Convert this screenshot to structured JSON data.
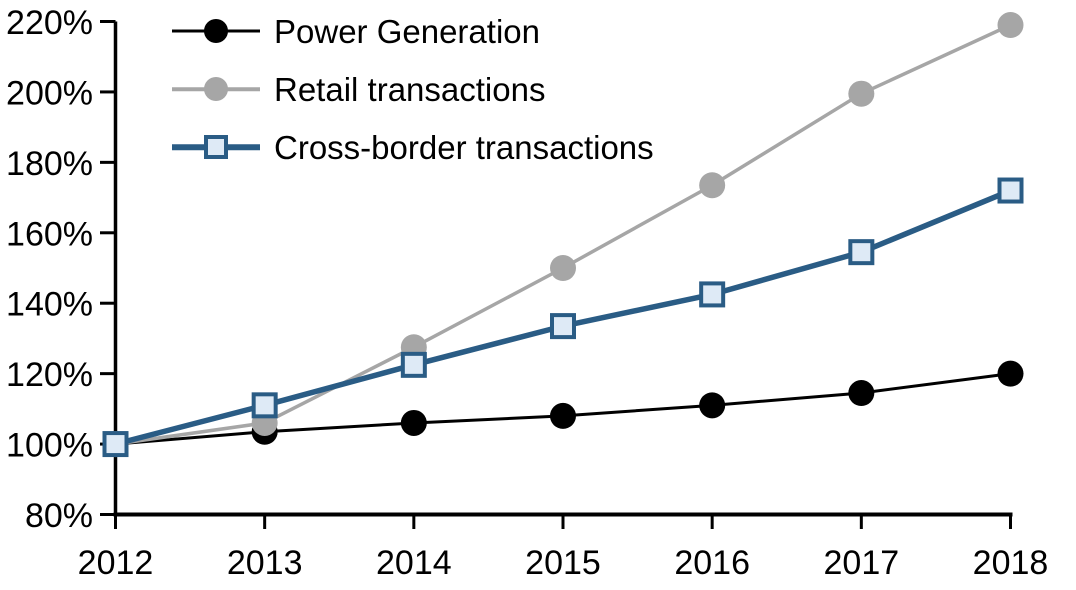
{
  "chart_data": {
    "type": "line",
    "title": "",
    "xlabel": "",
    "ylabel": "",
    "categories": [
      "2012",
      "2013",
      "2014",
      "2015",
      "2016",
      "2017",
      "2018"
    ],
    "series": [
      {
        "name": "Power Generation",
        "values": [
          100,
          103.5,
          106,
          108,
          111,
          114.5,
          120
        ],
        "color": "#000000",
        "marker": "circle",
        "marker_fill": "#000000",
        "line_width": 3
      },
      {
        "name": "Retail transactions",
        "values": [
          100,
          106,
          127.5,
          150,
          173.5,
          199.5,
          219
        ],
        "color": "#A6A6A6",
        "marker": "circle",
        "marker_fill": "#A6A6A6",
        "line_width": 3.5
      },
      {
        "name": "Cross-border transactions",
        "values": [
          100,
          111,
          122.5,
          133.5,
          142.5,
          154.5,
          172
        ],
        "color": "#2A5C85",
        "marker": "square",
        "marker_fill": "#DEEAF6",
        "line_width": 5.5
      }
    ],
    "ylim": [
      80,
      220
    ],
    "ytick_step": 20,
    "ytick_labels": [
      "80%",
      "100%",
      "120%",
      "140%",
      "160%",
      "180%",
      "200%",
      "220%"
    ],
    "axis_color": "#000000",
    "background_color": "#FFFFFF",
    "grid": false,
    "legend_position": "top-left"
  }
}
